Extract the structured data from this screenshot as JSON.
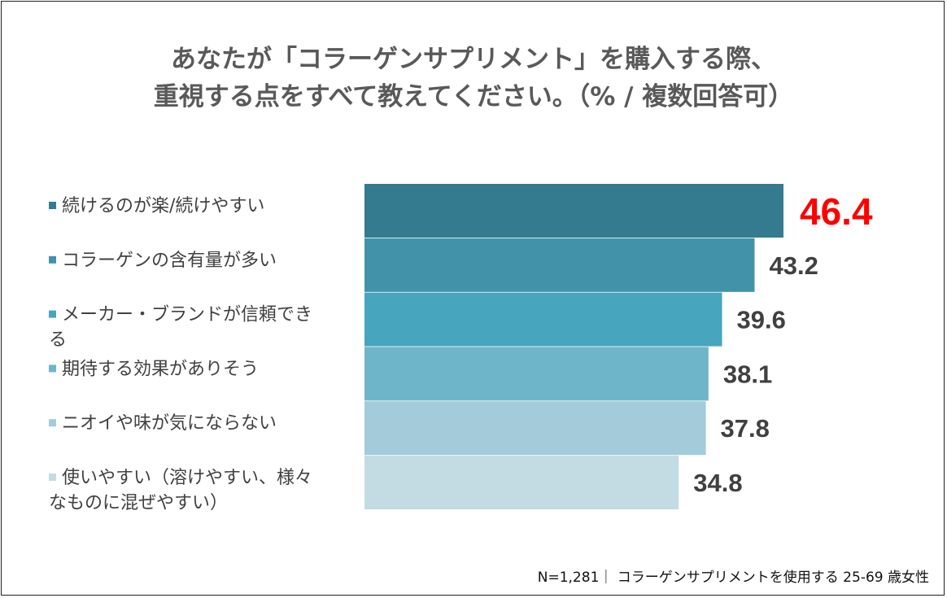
{
  "chart_data": {
    "type": "bar",
    "orientation": "horizontal",
    "title_lines": [
      "あなたが「コラーゲンサプリメント」を購入する際、",
      "重視する点をすべて教えてください。（% / 複数回答可）"
    ],
    "categories": [
      [
        "続けるのが楽/続けやすい"
      ],
      [
        "コラーゲンの含有量が多い"
      ],
      [
        "メーカー・ブランドが信頼でき",
        "る"
      ],
      [
        "期待する効果がありそう"
      ],
      [
        "ニオイや味が気にならない"
      ],
      [
        "使いやすい（溶けやすい、様々",
        "なものに混ぜやすい）"
      ]
    ],
    "values": [
      46.4,
      43.2,
      39.6,
      38.1,
      37.8,
      34.8
    ],
    "value_labels": [
      "46.4",
      "43.2",
      "39.6",
      "38.1",
      "37.8",
      "34.8"
    ],
    "colors": [
      "#357b90",
      "#4293a9",
      "#47a5bd",
      "#6fb5c9",
      "#a3cbd9",
      "#c3dce4"
    ],
    "highlight_index": 0,
    "highlight_color": "#ff0000",
    "label_color": "#404040",
    "xlim": [
      0,
      46.4
    ],
    "grid": false,
    "legend": "none"
  },
  "footnote": "N=1,281｜ コラーゲンサプリメントを使用する 25-69 歳女性"
}
